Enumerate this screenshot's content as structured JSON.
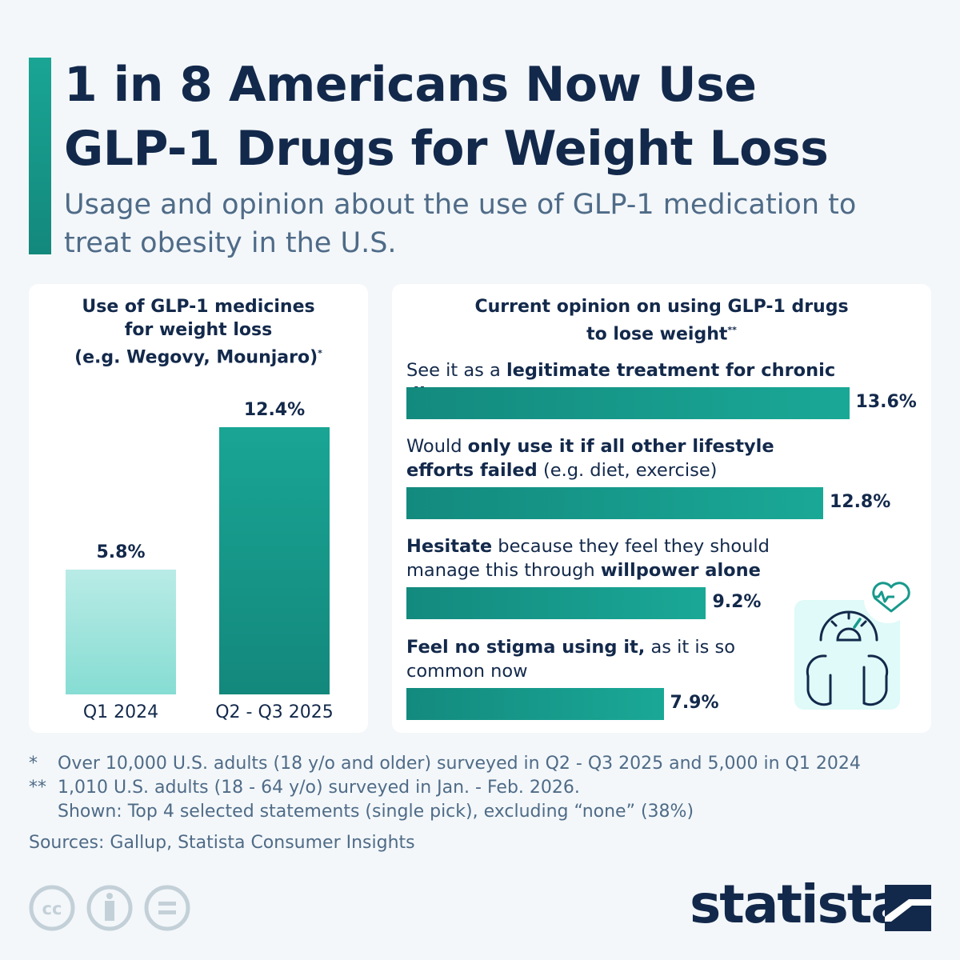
{
  "header": {
    "title_line1": "1 in 8 Americans Now Use",
    "title_line2": "GLP-1 Drugs for Weight Loss",
    "subtitle": "Usage and opinion about the use of GLP-1 medication to treat obesity in the U.S."
  },
  "colors": {
    "navy": "#13294b",
    "teal": "#17998b",
    "light_teal": "#8fe0d6",
    "icon_bg": "#dffaf8"
  },
  "chart_data": [
    {
      "type": "bar",
      "title_line1": "Use of GLP-1 medicines",
      "title_line2": "for weight loss",
      "title_line3": "(e.g. Wegovy, Mounjaro)",
      "title_mark": "*",
      "categories": [
        "Q1 2024",
        "Q2 - Q3 2025"
      ],
      "values": [
        5.8,
        12.4
      ],
      "value_labels": [
        "5.8%",
        "12.4%"
      ],
      "unit": "%"
    },
    {
      "type": "bar",
      "orientation": "horizontal",
      "title_line1": "Current opinion on using GLP-1 drugs",
      "title_line2": "to lose weight",
      "title_mark": "**",
      "categories": [
        {
          "parts": [
            {
              "t": "See it as a ",
              "b": false
            },
            {
              "t": "legitimate treatment for chronic disease",
              "b": true
            }
          ]
        },
        {
          "parts": [
            {
              "t": "Would ",
              "b": false
            },
            {
              "t": "only use it if all other lifestyle efforts failed",
              "b": true
            },
            {
              "t": " (e.g. diet, exercise)",
              "b": false
            }
          ]
        },
        {
          "parts": [
            {
              "t": "Hesitate",
              "b": true
            },
            {
              "t": " because they feel they should manage this through ",
              "b": false
            },
            {
              "t": "willpower alone",
              "b": true
            }
          ]
        },
        {
          "parts": [
            {
              "t": "Feel no stigma using it,",
              "b": true
            },
            {
              "t": " as it is so common now",
              "b": false
            }
          ]
        }
      ],
      "values": [
        13.6,
        12.8,
        9.2,
        7.9
      ],
      "value_labels": [
        "13.6%",
        "12.8%",
        "9.2%",
        "7.9%"
      ],
      "unit": "%"
    }
  ],
  "footer": {
    "note1_mark": "*",
    "note1": "Over 10,000 U.S. adults (18 y/o and older) surveyed in Q2 - Q3 2025 and 5,000 in Q1 2024",
    "note2_mark": "**",
    "note2": "1,010 U.S. adults (18 - 64 y/o) surveyed in Jan. - Feb. 2026.",
    "note3": "Shown: Top 4 selected statements (single pick), excluding “none” (38%)",
    "sources": "Sources: Gallup, Statista Consumer Insights",
    "brand": "statista",
    "license_icons": [
      "cc-icon",
      "attribution-icon",
      "no-derivatives-icon"
    ]
  }
}
